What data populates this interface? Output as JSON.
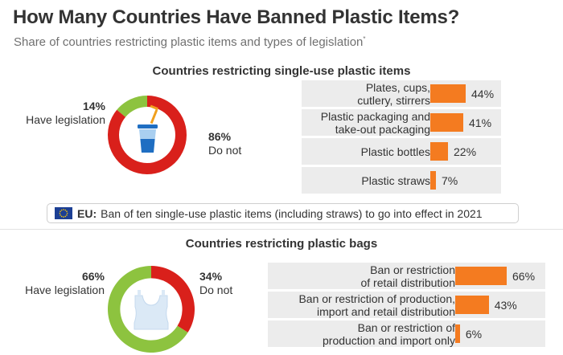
{
  "header": {
    "title": "How Many Countries Have Banned Plastic Items?",
    "subtitle": "Share of countries restricting plastic items and types of legislation",
    "subtitle_mark": "*"
  },
  "colors": {
    "orange": "#f47b20",
    "red": "#d9201b",
    "green": "#8dc33f",
    "eu_blue": "#1c3f94",
    "eu_gold": "#ffcc00"
  },
  "single_use": {
    "section_title": "Countries restricting single-use plastic items",
    "donut": {
      "legislation_pct": "14%",
      "legislation_label": "Have legislation",
      "not_pct": "86%",
      "not_label": "Do not",
      "icon": "plastic-cup-with-straw-icon"
    },
    "bars": [
      {
        "label": [
          "Plates, cups,",
          "cutlery, stirrers"
        ],
        "value": 44,
        "display": "44%"
      },
      {
        "label": [
          "Plastic packaging and",
          "take-out packaging"
        ],
        "value": 41,
        "display": "41%"
      },
      {
        "label": [
          "Plastic bottles"
        ],
        "value": 22,
        "display": "22%"
      },
      {
        "label": [
          "Plastic straws"
        ],
        "value": 7,
        "display": "7%"
      }
    ]
  },
  "eu_note": {
    "flag_icon": "eu-flag-icon",
    "prefix": "EU:",
    "text": "Ban of ten single-use plastic items (including straws) to go into effect in 2021"
  },
  "bags": {
    "section_title": "Countries restricting plastic bags",
    "donut": {
      "legislation_pct": "66%",
      "legislation_label": "Have legislation",
      "not_pct": "34%",
      "not_label": "Do not",
      "icon": "plastic-bag-icon"
    },
    "bars": [
      {
        "label": [
          "Ban or restriction",
          "of retail distribution"
        ],
        "value": 66,
        "display": "66%"
      },
      {
        "label": [
          "Ban or restriction of production,",
          "import and retail distribution"
        ],
        "value": 43,
        "display": "43%"
      },
      {
        "label": [
          "Ban or restriction of",
          "production and import only"
        ],
        "value": 6,
        "display": "6%"
      }
    ]
  },
  "chart_data": [
    {
      "type": "pie",
      "title": "Countries restricting single-use plastic items",
      "categories": [
        "Have legislation",
        "Do not"
      ],
      "values": [
        14,
        86
      ],
      "colors": [
        "#8dc33f",
        "#d9201b"
      ]
    },
    {
      "type": "bar",
      "title": "Countries restricting single-use plastic items",
      "categories": [
        "Plates, cups, cutlery, stirrers",
        "Plastic packaging and take-out packaging",
        "Plastic bottles",
        "Plastic straws"
      ],
      "values": [
        44,
        41,
        22,
        7
      ],
      "ylim": [
        0,
        100
      ]
    },
    {
      "type": "pie",
      "title": "Countries restricting plastic bags",
      "categories": [
        "Have legislation",
        "Do not"
      ],
      "values": [
        66,
        34
      ],
      "colors": [
        "#8dc33f",
        "#d9201b"
      ]
    },
    {
      "type": "bar",
      "title": "Countries restricting plastic bags",
      "categories": [
        "Ban or restriction of retail distribution",
        "Ban or restriction of production, import and retail distribution",
        "Ban or restriction of production and import only"
      ],
      "values": [
        66,
        43,
        6
      ],
      "ylim": [
        0,
        100
      ]
    }
  ]
}
